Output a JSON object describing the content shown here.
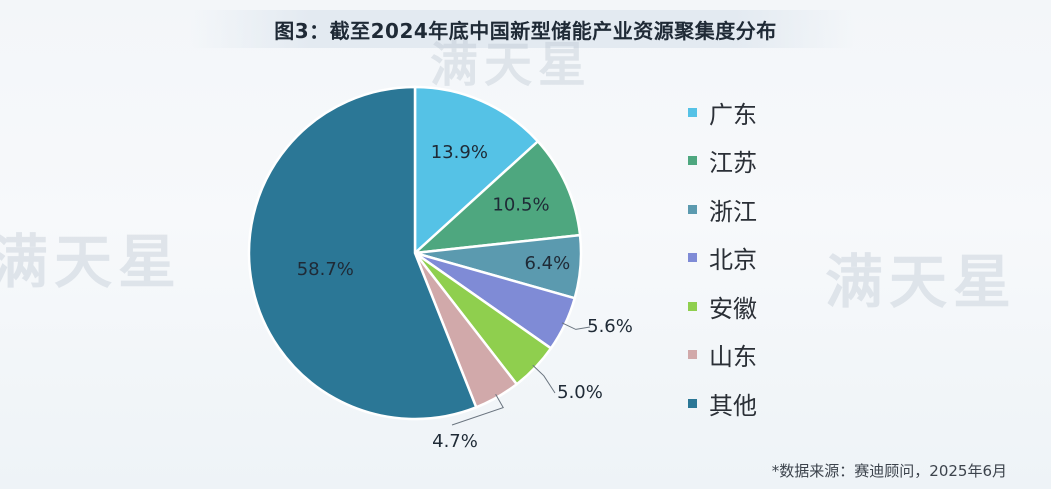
{
  "title": "图3：截至2024年底中国新型储能产业资源聚集度分布",
  "source": "*数据来源：赛迪顾问，2025年6月",
  "watermark": "满天星",
  "chart_data": {
    "type": "pie",
    "categories": [
      "广东",
      "江苏",
      "浙江",
      "北京",
      "安徽",
      "山东",
      "其他"
    ],
    "values": [
      13.9,
      10.5,
      6.4,
      5.6,
      5.0,
      4.7,
      58.7
    ],
    "labels": [
      "13.9%",
      "10.5%",
      "6.4%",
      "5.6%",
      "5.0%",
      "4.7%",
      "58.7%"
    ],
    "colors": [
      "#55c2e6",
      "#4ea77f",
      "#5b9aaf",
      "#7f8bd6",
      "#8fcf4e",
      "#d1a9aa",
      "#2b7796"
    ],
    "legend_position": "right",
    "start_angle_deg": 0,
    "direction": "clockwise"
  }
}
